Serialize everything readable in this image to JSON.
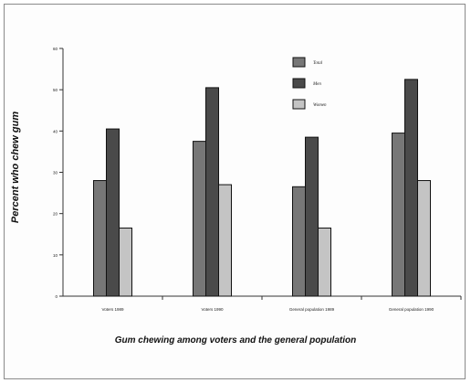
{
  "chart_data": {
    "type": "bar",
    "title": "",
    "xlabel": "",
    "ylabel": "Percent who chew gum",
    "caption": "Gum chewing among voters and the general population",
    "categories": [
      "Voters 1989",
      "Voters 1990",
      "General population 1989",
      "General population 1990"
    ],
    "series": [
      {
        "name": "Total",
        "values": [
          28,
          37.5,
          26.5,
          39.5
        ],
        "color": "#777777"
      },
      {
        "name": "Men",
        "values": [
          40.5,
          50.5,
          38.5,
          52.5
        ],
        "color": "#4a4a4a"
      },
      {
        "name": "Women",
        "values": [
          16.5,
          27,
          16.5,
          28
        ],
        "color": "#c4c4c4"
      }
    ],
    "ylim": [
      0,
      60
    ],
    "yticks": [
      "0",
      "10",
      "20",
      "30",
      "40",
      "50",
      "60"
    ],
    "grid": false,
    "legend_position": "top-right"
  }
}
